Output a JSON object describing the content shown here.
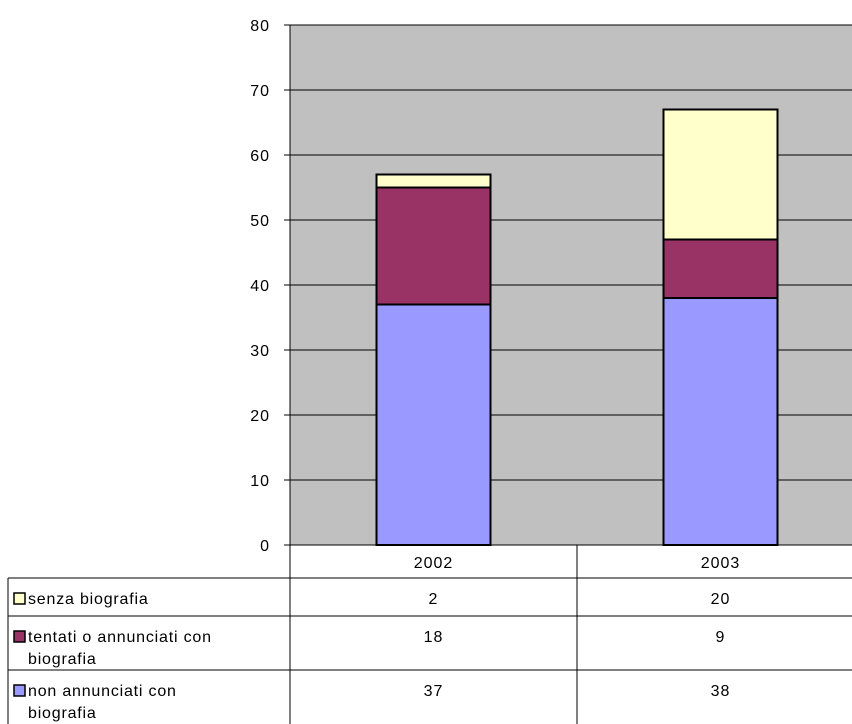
{
  "chart_data": {
    "type": "bar",
    "stacked": true,
    "categories": [
      "2002",
      "2003"
    ],
    "series": [
      {
        "name": "non annunciati con biografia",
        "values": [
          37,
          38
        ],
        "color": "#9999FF"
      },
      {
        "name": "tentati o annunciati con biografia",
        "values": [
          18,
          9
        ],
        "color": "#993366"
      },
      {
        "name": "senza biografia",
        "values": [
          2,
          20
        ],
        "color": "#FFFFCC"
      }
    ],
    "ylim": [
      0,
      80
    ],
    "yticks": [
      0,
      10,
      20,
      30,
      40,
      50,
      60,
      70,
      80
    ],
    "grid": true,
    "plot_background": "#C0C0C0",
    "legend": "data-table-left",
    "data_table": true,
    "table_rows": [
      {
        "label_lines": [
          "senza biografia"
        ],
        "values": [
          "2",
          "20"
        ],
        "color": "#FFFFCC"
      },
      {
        "label_lines": [
          "tentati o annunciati con",
          "biografia"
        ],
        "values": [
          "18",
          "9"
        ],
        "color": "#993366"
      },
      {
        "label_lines": [
          "non annunciati con",
          "biografia"
        ],
        "values": [
          "37",
          "38"
        ],
        "color": "#9999FF"
      }
    ]
  }
}
